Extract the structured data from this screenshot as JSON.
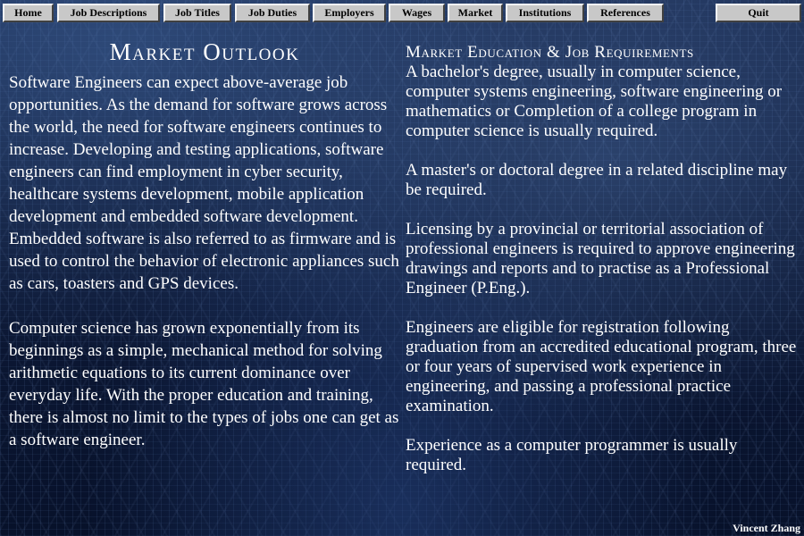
{
  "nav": {
    "home": "Home",
    "job_descriptions": "Job Descriptions",
    "job_titles": "Job Titles",
    "job_duties": "Job Duties",
    "employers": "Employers",
    "wages": "Wages",
    "market": "Market",
    "institutions": "Institutions",
    "references": "References",
    "quit": "Quit"
  },
  "left": {
    "title": "Market Outlook",
    "paragraphs": [
      "Software Engineers can expect above-average job opportunities. As the demand for software grows across the world, the need for software engineers continues to increase. Developing and testing applications, software engineers can find employment in cyber security, healthcare systems development, mobile application development and embedded software development. Embedded software is also referred to as firmware and is used to control the behavior of electronic appliances such as cars, toasters and GPS devices.",
      "Computer science has grown exponentially from its beginnings as a simple, mechanical method for solving arithmetic equations to its current dominance over everyday life. With the proper education  and training, there is almost no limit to the types of jobs one can get as a software engineer."
    ]
  },
  "right": {
    "title": "Market Education & Job Requirements",
    "paragraphs": [
      "A bachelor's degree, usually in computer science, computer systems engineering, software engineering or mathematics or Completion of a college program in computer science is usually required.",
      "A master's or doctoral degree in a related discipline may be required.",
      "Licensing by a provincial or territorial association of professional engineers is required to approve engineering drawings and reports and to practise as a Professional Engineer (P.Eng.).",
      "Engineers are eligible for registration following graduation from an accredited educational program, three or four years of supervised work experience in engineering, and passing a professional practice examination.",
      "Experience as a computer programmer is usually required."
    ]
  },
  "footer": {
    "author": "Vincent Zhang"
  },
  "colors": {
    "button_face": "#c8c8c8",
    "text": "#ffffff",
    "background": "#0e1a38"
  }
}
